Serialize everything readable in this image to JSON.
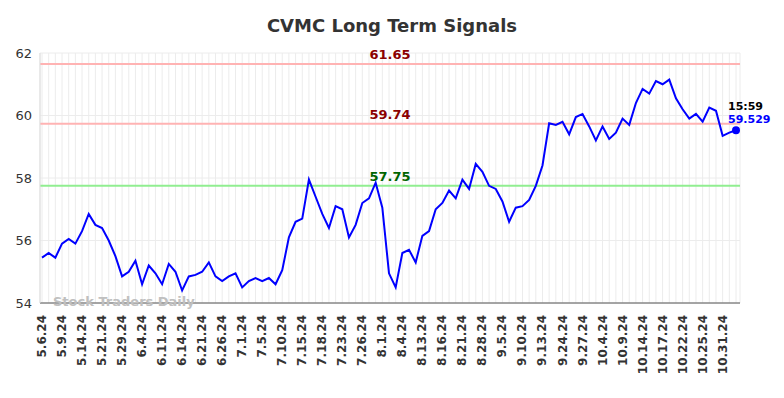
{
  "chart_data": {
    "type": "line",
    "title": "CVMC Long Term Signals",
    "watermark": "Stock Traders Daily",
    "annotation": "15:59",
    "color": "#0000ff",
    "grid": true,
    "ylim": [
      54,
      62
    ],
    "yticks": [
      54,
      56,
      58,
      60,
      62
    ],
    "categories": [
      "5.6.24",
      null,
      null,
      "5.9.24",
      null,
      null,
      "5.14.24",
      null,
      null,
      "5.21.24",
      null,
      null,
      "5.29.24",
      null,
      null,
      "6.4.24",
      null,
      null,
      "6.11.24",
      null,
      null,
      "6.14.24",
      null,
      null,
      "6.21.24",
      null,
      null,
      "6.26.24",
      null,
      null,
      "7.1.24",
      null,
      null,
      "7.5.24",
      null,
      null,
      "7.10.24",
      null,
      null,
      "7.15.24",
      null,
      null,
      "7.18.24",
      null,
      null,
      "7.23.24",
      null,
      null,
      "7.26.24",
      null,
      null,
      "8.1.24",
      null,
      null,
      "8.4.24",
      null,
      null,
      "8.13.24",
      null,
      null,
      "8.16.24",
      null,
      null,
      "8.21.24",
      null,
      null,
      "8.28.24",
      null,
      null,
      "9.5.24",
      null,
      null,
      "9.10.24",
      null,
      null,
      "9.13.24",
      null,
      null,
      "9.24.24",
      null,
      null,
      "9.27.24",
      null,
      null,
      "10.4.24",
      null,
      null,
      "10.9.24",
      null,
      null,
      "10.14.24",
      null,
      null,
      "10.17.24",
      null,
      null,
      "10.22.24",
      null,
      null,
      "10.25.24",
      null,
      null,
      "10.31.24",
      null,
      null
    ],
    "values": [
      55.45,
      55.6,
      55.45,
      55.9,
      56.05,
      55.9,
      56.3,
      56.85,
      56.5,
      56.4,
      56.0,
      55.5,
      54.85,
      55.0,
      55.35,
      54.6,
      55.2,
      54.95,
      54.6,
      55.25,
      55.0,
      54.4,
      54.85,
      54.9,
      55.0,
      55.3,
      54.85,
      54.7,
      54.85,
      54.95,
      54.5,
      54.7,
      54.8,
      54.7,
      54.8,
      54.6,
      55.05,
      56.1,
      56.6,
      56.7,
      57.95,
      57.4,
      56.85,
      56.4,
      57.1,
      57.0,
      56.1,
      56.5,
      57.2,
      57.35,
      57.85,
      57.05,
      54.95,
      54.5,
      55.6,
      55.7,
      55.3,
      56.15,
      56.3,
      57.0,
      57.2,
      57.6,
      57.35,
      57.95,
      57.65,
      58.45,
      58.2,
      57.75,
      57.65,
      57.25,
      56.6,
      57.05,
      57.1,
      57.3,
      57.75,
      58.4,
      59.75,
      59.7,
      59.8,
      59.4,
      59.95,
      60.05,
      59.65,
      59.2,
      59.65,
      59.25,
      59.45,
      59.9,
      59.7,
      60.4,
      60.85,
      60.7,
      61.1,
      61.0,
      61.15,
      60.55,
      60.2,
      59.9,
      60.05,
      59.8,
      60.25,
      60.15,
      59.35,
      59.45,
      59.529
    ],
    "reference_lines": [
      {
        "value": 61.65,
        "color": "#ffb3b3"
      },
      {
        "value": 59.74,
        "color": "#ffb3b3"
      },
      {
        "value": 57.75,
        "color": "#90ee90"
      }
    ]
  }
}
